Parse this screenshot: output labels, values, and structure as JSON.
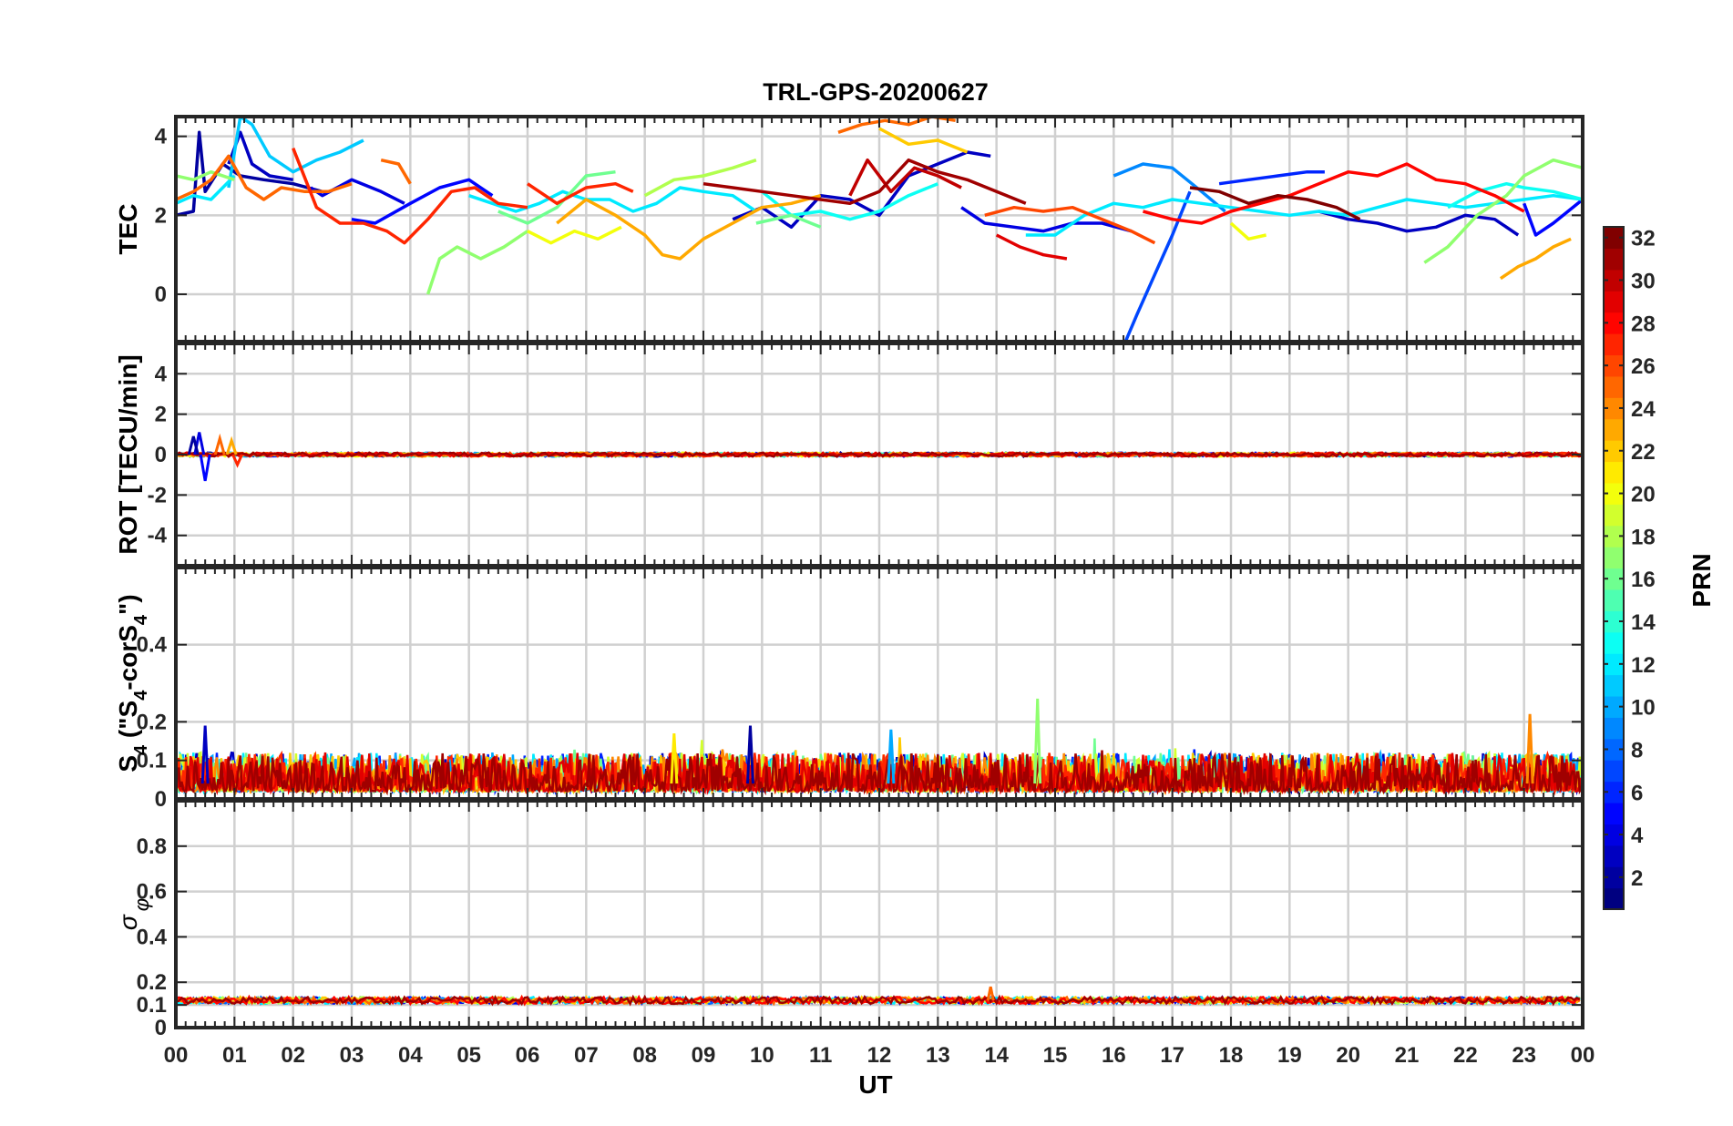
{
  "figure": {
    "title": "TRL-GPS-20200627",
    "xlabel": "UT",
    "x_tick_labels": [
      "00",
      "01",
      "02",
      "03",
      "04",
      "05",
      "06",
      "07",
      "08",
      "09",
      "10",
      "11",
      "12",
      "13",
      "14",
      "15",
      "16",
      "17",
      "18",
      "19",
      "20",
      "21",
      "22",
      "23",
      "00"
    ],
    "colorbar": {
      "label": "PRN",
      "colormap": "jet",
      "range": [
        1,
        32
      ],
      "tick_values": [
        2,
        4,
        6,
        8,
        10,
        12,
        14,
        16,
        18,
        20,
        22,
        24,
        26,
        28,
        30,
        32
      ]
    }
  },
  "chart_data": [
    {
      "type": "line",
      "panel": "TEC",
      "ylabel": "TEC",
      "xlim": [
        0,
        24
      ],
      "ylim": [
        -1.2,
        4.5
      ],
      "y_ticks": [
        0,
        2,
        4
      ],
      "grid": true,
      "series": [
        {
          "prn": 2,
          "x": [
            0.0,
            0.3,
            0.4,
            0.5,
            0.8,
            1.1,
            1.5,
            2.0,
            2.5
          ],
          "y": [
            2.0,
            2.1,
            4.1,
            2.6,
            3.3,
            3.0,
            2.9,
            2.8,
            2.6
          ]
        },
        {
          "prn": 3,
          "x": [
            0.9,
            1.1,
            1.3,
            1.6,
            2.0
          ],
          "y": [
            3.3,
            4.1,
            3.3,
            3.0,
            2.9
          ]
        },
        {
          "prn": 4,
          "x": [
            2.3,
            2.5,
            3.0,
            3.5,
            3.9
          ],
          "y": [
            2.7,
            2.5,
            2.9,
            2.6,
            2.3
          ]
        },
        {
          "prn": 5,
          "x": [
            3.0,
            3.4,
            4.0,
            4.5,
            5.0,
            5.4
          ],
          "y": [
            1.9,
            1.8,
            2.3,
            2.7,
            2.9,
            2.5
          ]
        },
        {
          "prn": 3,
          "x": [
            9.5,
            10.0,
            10.5,
            11.0,
            11.5,
            12.0,
            12.5,
            13.0,
            13.5,
            13.9
          ],
          "y": [
            1.9,
            2.2,
            1.7,
            2.5,
            2.4,
            2.0,
            3.0,
            3.3,
            3.6,
            3.5
          ]
        },
        {
          "prn": 4,
          "x": [
            13.4,
            13.8,
            14.3,
            14.8,
            15.3,
            15.8,
            16.3
          ],
          "y": [
            2.2,
            1.8,
            1.7,
            1.6,
            1.8,
            1.8,
            1.6
          ]
        },
        {
          "prn": 7,
          "x": [
            16.2,
            16.4,
            16.7,
            17.0,
            17.3
          ],
          "y": [
            -1.2,
            -0.5,
            0.5,
            1.5,
            2.6
          ]
        },
        {
          "prn": 9,
          "x": [
            16.0,
            16.5,
            17.0,
            17.5,
            17.9
          ],
          "y": [
            3.0,
            3.3,
            3.2,
            2.6,
            2.1
          ]
        },
        {
          "prn": 6,
          "x": [
            17.8,
            18.3,
            18.8,
            19.3,
            19.6
          ],
          "y": [
            2.8,
            2.9,
            3.0,
            3.1,
            3.1
          ]
        },
        {
          "prn": 3,
          "x": [
            19.5,
            20.0,
            20.5,
            21.0,
            21.5,
            22.0,
            22.5,
            22.9
          ],
          "y": [
            2.1,
            1.9,
            1.8,
            1.6,
            1.7,
            2.0,
            1.9,
            1.5
          ]
        },
        {
          "prn": 5,
          "x": [
            23.0,
            23.2,
            23.5,
            24.0
          ],
          "y": [
            2.3,
            1.5,
            1.8,
            2.4
          ]
        },
        {
          "prn": 11,
          "x": [
            0.9,
            1.1,
            1.3,
            1.6,
            2.0,
            2.4,
            2.8,
            3.2
          ],
          "y": [
            2.7,
            4.5,
            4.3,
            3.5,
            3.1,
            3.4,
            3.6,
            3.9
          ]
        },
        {
          "prn": 12,
          "x": [
            0.0,
            0.3,
            0.6,
            1.0
          ],
          "y": [
            2.3,
            2.5,
            2.4,
            3.0
          ]
        },
        {
          "prn": 12,
          "x": [
            5.0,
            5.4,
            5.8,
            6.2,
            6.6,
            7.0,
            7.4,
            7.8,
            8.2,
            8.6,
            9.0,
            9.5,
            9.9
          ],
          "y": [
            2.5,
            2.3,
            2.1,
            2.3,
            2.6,
            2.4,
            2.4,
            2.1,
            2.3,
            2.7,
            2.6,
            2.5,
            2.1
          ]
        },
        {
          "prn": 13,
          "x": [
            10.0,
            10.5,
            11.0,
            11.5,
            12.0,
            12.5,
            13.0
          ],
          "y": [
            2.6,
            2.0,
            2.1,
            1.9,
            2.1,
            2.5,
            2.8
          ]
        },
        {
          "prn": 12,
          "x": [
            14.5,
            15.0,
            15.5,
            16.0,
            16.5,
            17.0,
            17.5,
            18.0,
            18.5,
            19.0,
            19.5,
            20.0,
            20.5,
            21.0,
            21.5,
            22.0,
            22.5,
            23.0,
            23.5,
            24.0
          ],
          "y": [
            1.5,
            1.5,
            2.0,
            2.3,
            2.2,
            2.4,
            2.3,
            2.2,
            2.1,
            2.0,
            2.1,
            2.0,
            2.2,
            2.4,
            2.3,
            2.2,
            2.3,
            2.4,
            2.5,
            2.4
          ]
        },
        {
          "prn": 13,
          "x": [
            21.7,
            22.2,
            22.7,
            23.0,
            23.5,
            24.0
          ],
          "y": [
            2.2,
            2.6,
            2.8,
            2.7,
            2.6,
            2.4
          ]
        },
        {
          "prn": 17,
          "x": [
            0.0,
            0.3,
            0.6,
            1.0
          ],
          "y": [
            3.0,
            2.9,
            3.1,
            2.9
          ]
        },
        {
          "prn": 17,
          "x": [
            4.3,
            4.5,
            4.8,
            5.2,
            5.6,
            6.0
          ],
          "y": [
            0.0,
            0.9,
            1.2,
            0.9,
            1.2,
            1.6
          ]
        },
        {
          "prn": 16,
          "x": [
            5.5,
            6.0,
            6.5,
            7.0,
            7.5
          ],
          "y": [
            2.1,
            1.8,
            2.2,
            3.0,
            3.1
          ]
        },
        {
          "prn": 18,
          "x": [
            8.0,
            8.5,
            9.0,
            9.5,
            9.9
          ],
          "y": [
            2.5,
            2.9,
            3.0,
            3.2,
            3.4
          ]
        },
        {
          "prn": 16,
          "x": [
            9.9,
            10.5,
            11.0
          ],
          "y": [
            1.8,
            2.0,
            1.7
          ]
        },
        {
          "prn": 17,
          "x": [
            21.3,
            21.7,
            22.2,
            22.7,
            23.0,
            23.5,
            24.0
          ],
          "y": [
            0.8,
            1.2,
            2.0,
            2.5,
            3.0,
            3.4,
            3.2
          ]
        },
        {
          "prn": 20,
          "x": [
            6.0,
            6.4,
            6.8,
            7.2,
            7.6
          ],
          "y": [
            1.6,
            1.3,
            1.6,
            1.4,
            1.7
          ]
        },
        {
          "prn": 20,
          "x": [
            18.0,
            18.3,
            18.6
          ],
          "y": [
            1.8,
            1.4,
            1.5
          ]
        },
        {
          "prn": 22,
          "x": [
            12.0,
            12.5,
            13.0,
            13.5
          ],
          "y": [
            4.2,
            3.8,
            3.9,
            3.6
          ]
        },
        {
          "prn": 23,
          "x": [
            6.5,
            7.0,
            7.5,
            8.0,
            8.3,
            8.6,
            9.0,
            9.5,
            10.0,
            10.5,
            11.0
          ],
          "y": [
            1.8,
            2.4,
            2.0,
            1.5,
            1.0,
            0.9,
            1.4,
            1.8,
            2.2,
            2.3,
            2.5
          ]
        },
        {
          "prn": 23,
          "x": [
            22.6,
            22.9,
            23.2,
            23.5,
            23.8
          ],
          "y": [
            0.4,
            0.7,
            0.9,
            1.2,
            1.4
          ]
        },
        {
          "prn": 25,
          "x": [
            11.3,
            11.7,
            12.1,
            12.5,
            12.9,
            13.3
          ],
          "y": [
            4.1,
            4.3,
            4.4,
            4.3,
            4.5,
            4.4
          ]
        },
        {
          "prn": 25,
          "x": [
            0.0,
            0.3,
            0.6,
            0.9,
            1.2,
            1.5,
            1.8,
            2.2,
            2.6,
            3.0
          ],
          "y": [
            2.4,
            2.6,
            2.9,
            3.5,
            2.7,
            2.4,
            2.7,
            2.6,
            2.6,
            2.8
          ]
        },
        {
          "prn": 25,
          "x": [
            3.5,
            3.8,
            4.0
          ],
          "y": [
            3.4,
            3.3,
            2.8
          ]
        },
        {
          "prn": 26,
          "x": [
            13.8,
            14.3,
            14.8,
            15.3,
            15.8,
            16.3,
            16.7
          ],
          "y": [
            2.0,
            2.2,
            2.1,
            2.2,
            1.9,
            1.6,
            1.3
          ]
        },
        {
          "prn": 27,
          "x": [
            2.0,
            2.4,
            2.8,
            3.2,
            3.6,
            3.9,
            4.3,
            4.7,
            5.1,
            5.5,
            6.0
          ],
          "y": [
            3.7,
            2.2,
            1.8,
            1.8,
            1.6,
            1.3,
            1.9,
            2.6,
            2.7,
            2.3,
            2.2
          ]
        },
        {
          "prn": 27,
          "x": [
            6.0,
            6.5,
            7.0,
            7.5,
            7.8
          ],
          "y": [
            2.8,
            2.3,
            2.7,
            2.8,
            2.6
          ]
        },
        {
          "prn": 28,
          "x": [
            16.5,
            17.0,
            17.5,
            18.0,
            18.5,
            19.0,
            19.5,
            20.0,
            20.5,
            21.0,
            21.5,
            22.0,
            22.5,
            23.0
          ],
          "y": [
            2.1,
            1.9,
            1.8,
            2.1,
            2.3,
            2.5,
            2.8,
            3.1,
            3.0,
            3.3,
            2.9,
            2.8,
            2.5,
            2.1
          ]
        },
        {
          "prn": 29,
          "x": [
            14.0,
            14.4,
            14.8,
            15.2
          ],
          "y": [
            1.5,
            1.2,
            1.0,
            0.9
          ]
        },
        {
          "prn": 30,
          "x": [
            11.5,
            11.8,
            12.2,
            12.6,
            13.0,
            13.4
          ],
          "y": [
            2.5,
            3.4,
            2.6,
            3.2,
            3.0,
            2.7
          ]
        },
        {
          "prn": 31,
          "x": [
            9.0,
            9.5,
            10.0,
            10.5,
            11.0,
            11.5,
            12.0,
            12.5,
            13.0,
            13.5,
            14.0,
            14.5
          ],
          "y": [
            2.8,
            2.7,
            2.6,
            2.5,
            2.4,
            2.3,
            2.6,
            3.4,
            3.1,
            2.9,
            2.6,
            2.3
          ]
        },
        {
          "prn": 32,
          "x": [
            17.3,
            17.8,
            18.3,
            18.8,
            19.3,
            19.8,
            20.2
          ],
          "y": [
            2.7,
            2.6,
            2.3,
            2.5,
            2.4,
            2.2,
            1.9
          ]
        }
      ]
    },
    {
      "type": "line",
      "panel": "ROT",
      "ylabel": "ROT [TECU/min]",
      "xlim": [
        0,
        24
      ],
      "ylim": [
        -5.5,
        5.5
      ],
      "y_ticks": [
        -4,
        -2,
        0,
        2,
        4
      ],
      "grid": true,
      "baseline": 0,
      "spikes": [
        {
          "prn": 4,
          "x": 0.4,
          "y": 1.1
        },
        {
          "prn": 5,
          "x": 0.5,
          "y": -1.3
        },
        {
          "prn": 25,
          "x": 0.75,
          "y": 0.8
        },
        {
          "prn": 2,
          "x": 0.3,
          "y": 0.9
        },
        {
          "prn": 23,
          "x": 0.95,
          "y": 0.7
        },
        {
          "prn": 27,
          "x": 1.05,
          "y": -0.5
        }
      ]
    },
    {
      "type": "line",
      "panel": "S4",
      "ylabel": "S4 (\"S4-corS4\")",
      "xlim": [
        0,
        24
      ],
      "ylim": [
        0,
        0.6
      ],
      "y_ticks": [
        0,
        0.1,
        0.2,
        0.4
      ],
      "grid": true,
      "typical_range": [
        0.02,
        0.1
      ],
      "peaks": [
        {
          "prn": 17,
          "x": 14.7,
          "y": 0.26
        },
        {
          "prn": 24,
          "x": 23.1,
          "y": 0.22
        },
        {
          "prn": 3,
          "x": 0.5,
          "y": 0.19
        },
        {
          "prn": 2,
          "x": 9.8,
          "y": 0.19
        },
        {
          "prn": 10,
          "x": 12.2,
          "y": 0.18
        },
        {
          "prn": 21,
          "x": 8.5,
          "y": 0.17
        }
      ]
    },
    {
      "type": "line",
      "panel": "sigma_phi",
      "ylabel": "σ φ",
      "xlim": [
        0,
        24
      ],
      "ylim": [
        0,
        1.0
      ],
      "y_ticks": [
        0,
        0.1,
        0.2,
        0.4,
        0.6,
        0.8
      ],
      "grid": true,
      "typical_value": 0.12,
      "peaks": [
        {
          "prn": 25,
          "x": 13.9,
          "y": 0.18
        }
      ]
    }
  ]
}
